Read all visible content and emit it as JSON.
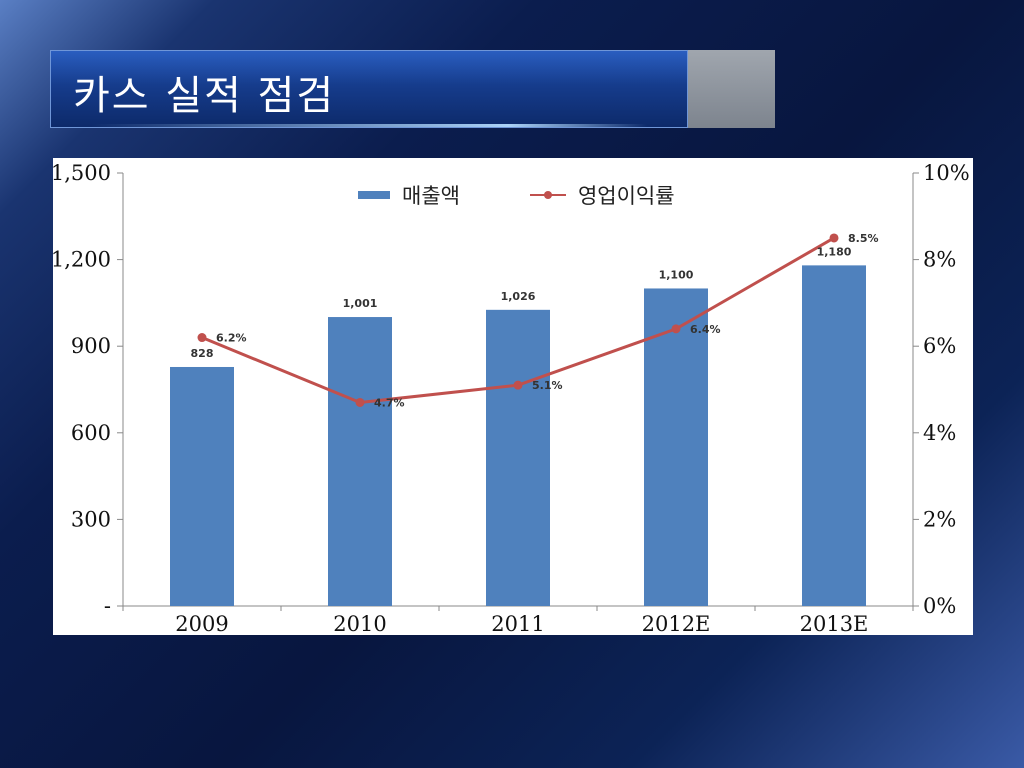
{
  "slide": {
    "title": "카스 실적 점검"
  },
  "colors": {
    "bar": "#4f81bd",
    "line": "#c0504d",
    "title_bar": "#163c8c",
    "title_tab": "#7d848e"
  },
  "chart_data": {
    "type": "bar",
    "categories": [
      "2009",
      "2010",
      "2011",
      "2012E",
      "2013E"
    ],
    "series": [
      {
        "name": "매출액",
        "type": "bar",
        "axis": "left",
        "values": [
          828,
          1001,
          1026,
          1100,
          1180
        ],
        "data_labels": [
          "828",
          "1,001",
          "1,026",
          "1,100",
          "1,180"
        ]
      },
      {
        "name": "영업이익률",
        "type": "line",
        "axis": "right",
        "values": [
          6.2,
          4.7,
          5.1,
          6.4,
          8.5
        ],
        "data_labels": [
          "6.2%",
          "4.7%",
          "5.1%",
          "6.4%",
          "8.5%"
        ]
      }
    ],
    "y_left": {
      "range": [
        0,
        1500
      ],
      "ticks": [
        0,
        300,
        600,
        900,
        1200,
        1500
      ],
      "tick_labels": [
        "-",
        "300",
        "600",
        "900",
        "1,200",
        "1,500"
      ]
    },
    "y_right": {
      "range": [
        0,
        10
      ],
      "ticks": [
        0,
        2,
        4,
        6,
        8,
        10
      ],
      "tick_labels": [
        "0%",
        "2%",
        "4%",
        "6%",
        "8%",
        "10%"
      ]
    },
    "grid": false,
    "legend_position": "top"
  }
}
